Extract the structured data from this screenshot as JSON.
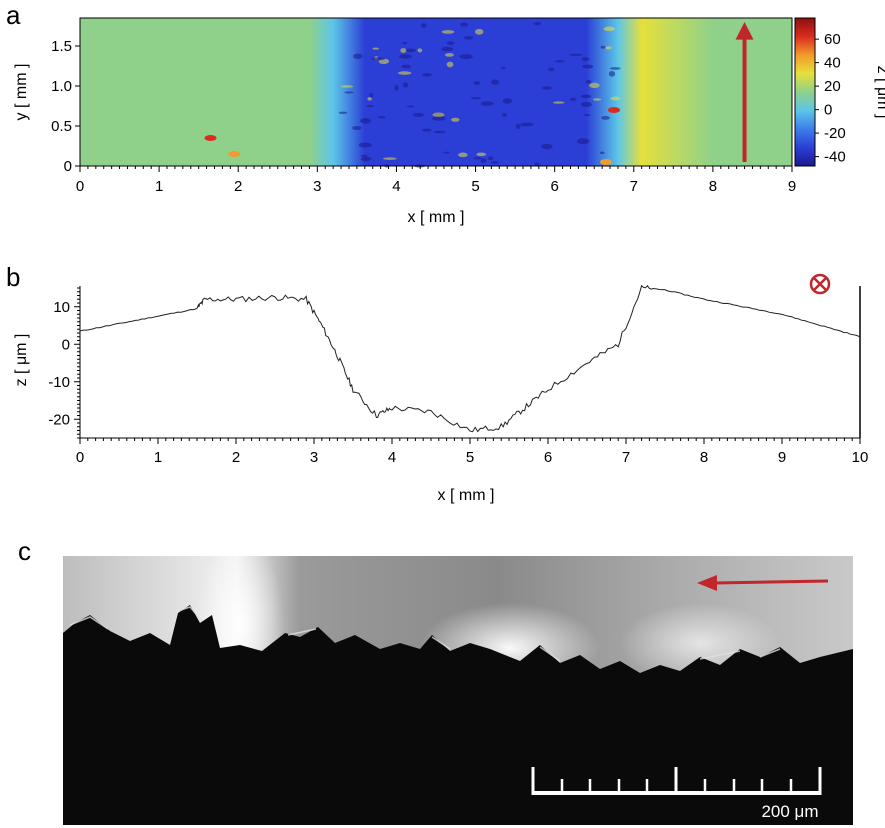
{
  "panels": {
    "a": "a",
    "b": "b",
    "c": "c"
  },
  "chart_data": [
    {
      "type": "heatmap",
      "panel": "a",
      "xlabel": "x [ mm ]",
      "ylabel": "y [ mm ]",
      "xlim": [
        0,
        9
      ],
      "ylim": [
        0,
        1.85
      ],
      "x_ticks": [
        "0",
        "1",
        "2",
        "3",
        "4",
        "5",
        "6",
        "7",
        "8",
        "9"
      ],
      "y_ticks": [
        "0",
        "0.5",
        "1.0",
        "1.5"
      ],
      "y_tick_values": [
        0,
        0.5,
        1.0,
        1.5
      ],
      "colorbar": {
        "label": "z [ μm ]",
        "range": [
          -48,
          78
        ],
        "ticks": [
          "60",
          "40",
          "20",
          "0",
          "-20",
          "-40"
        ],
        "tick_values": [
          60,
          40,
          20,
          0,
          -20,
          -40
        ],
        "colors": [
          "#1a1a8c",
          "#2b3fd6",
          "#3d7ee8",
          "#5cc6e8",
          "#8fd18a",
          "#e6e03a",
          "#f29a2a",
          "#d92c1e",
          "#8c1010"
        ]
      },
      "profile_x": [
        0,
        1,
        2,
        2.9,
        3.2,
        3.6,
        4.5,
        5.5,
        6.4,
        6.8,
        7.1,
        8,
        9
      ],
      "profile_z": [
        10,
        12,
        14,
        15,
        5,
        -35,
        -40,
        -40,
        -30,
        0,
        25,
        22,
        18
      ],
      "arrow_color": "#c0262b"
    },
    {
      "type": "line",
      "panel": "b",
      "xlabel": "x [ mm ]",
      "ylabel": "z [ μm ]",
      "xlim": [
        0,
        10
      ],
      "ylim": [
        -25,
        15
      ],
      "x_ticks": [
        "0",
        "1",
        "2",
        "3",
        "4",
        "5",
        "6",
        "7",
        "8",
        "9",
        "10"
      ],
      "y_ticks": [
        "10",
        "0",
        "-10",
        "-20"
      ],
      "y_tick_values": [
        10,
        0,
        -10,
        -20
      ],
      "series": [
        {
          "x": [
            0,
            0.5,
            1.0,
            1.5,
            1.6,
            2.0,
            2.5,
            2.9,
            3.1,
            3.3,
            3.5,
            3.8,
            4.0,
            4.5,
            5.0,
            5.4,
            5.7,
            6.0,
            6.5,
            6.9,
            7.2,
            7.5,
            8.0,
            8.5,
            9.0,
            9.5,
            10.0
          ],
          "y": [
            3.5,
            5.5,
            7.5,
            9.5,
            12,
            12,
            12.5,
            12,
            5,
            -3,
            -12,
            -19,
            -17,
            -18,
            -23,
            -22,
            -17,
            -12,
            -5,
            0,
            15,
            14.5,
            12,
            10,
            8,
            5,
            2
          ]
        }
      ],
      "marker_color": "#c0262b"
    }
  ],
  "micrograph": {
    "scale_bar_label": "200  μm",
    "arrow_color": "#c0262b"
  }
}
